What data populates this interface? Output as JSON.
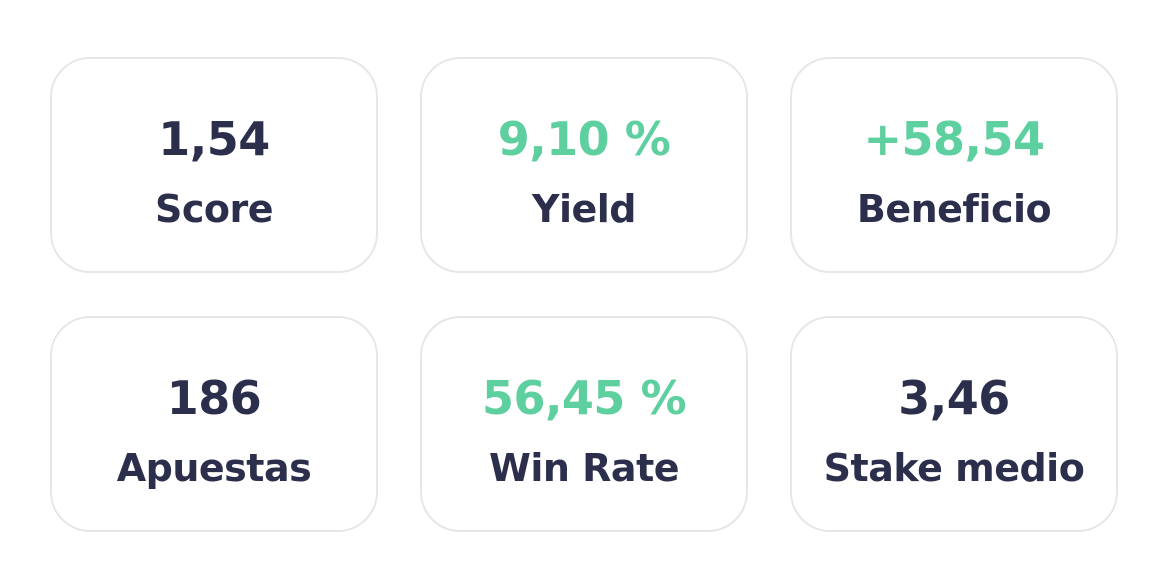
{
  "cards": [
    {
      "value": "1,54",
      "label": "Score",
      "color": "#2b2f4c"
    },
    {
      "value": "9,10 %",
      "label": "Yield",
      "color": "#5ecf9e"
    },
    {
      "value": "+58,54",
      "label": "Beneficio",
      "color": "#5ecf9e"
    },
    {
      "value": "186",
      "label": "Apuestas",
      "color": "#2b2f4c"
    },
    {
      "value": "56,45 %",
      "label": "Win Rate",
      "color": "#5ecf9e"
    },
    {
      "value": "3,46",
      "label": "Stake medio",
      "color": "#2b2f4c"
    }
  ]
}
